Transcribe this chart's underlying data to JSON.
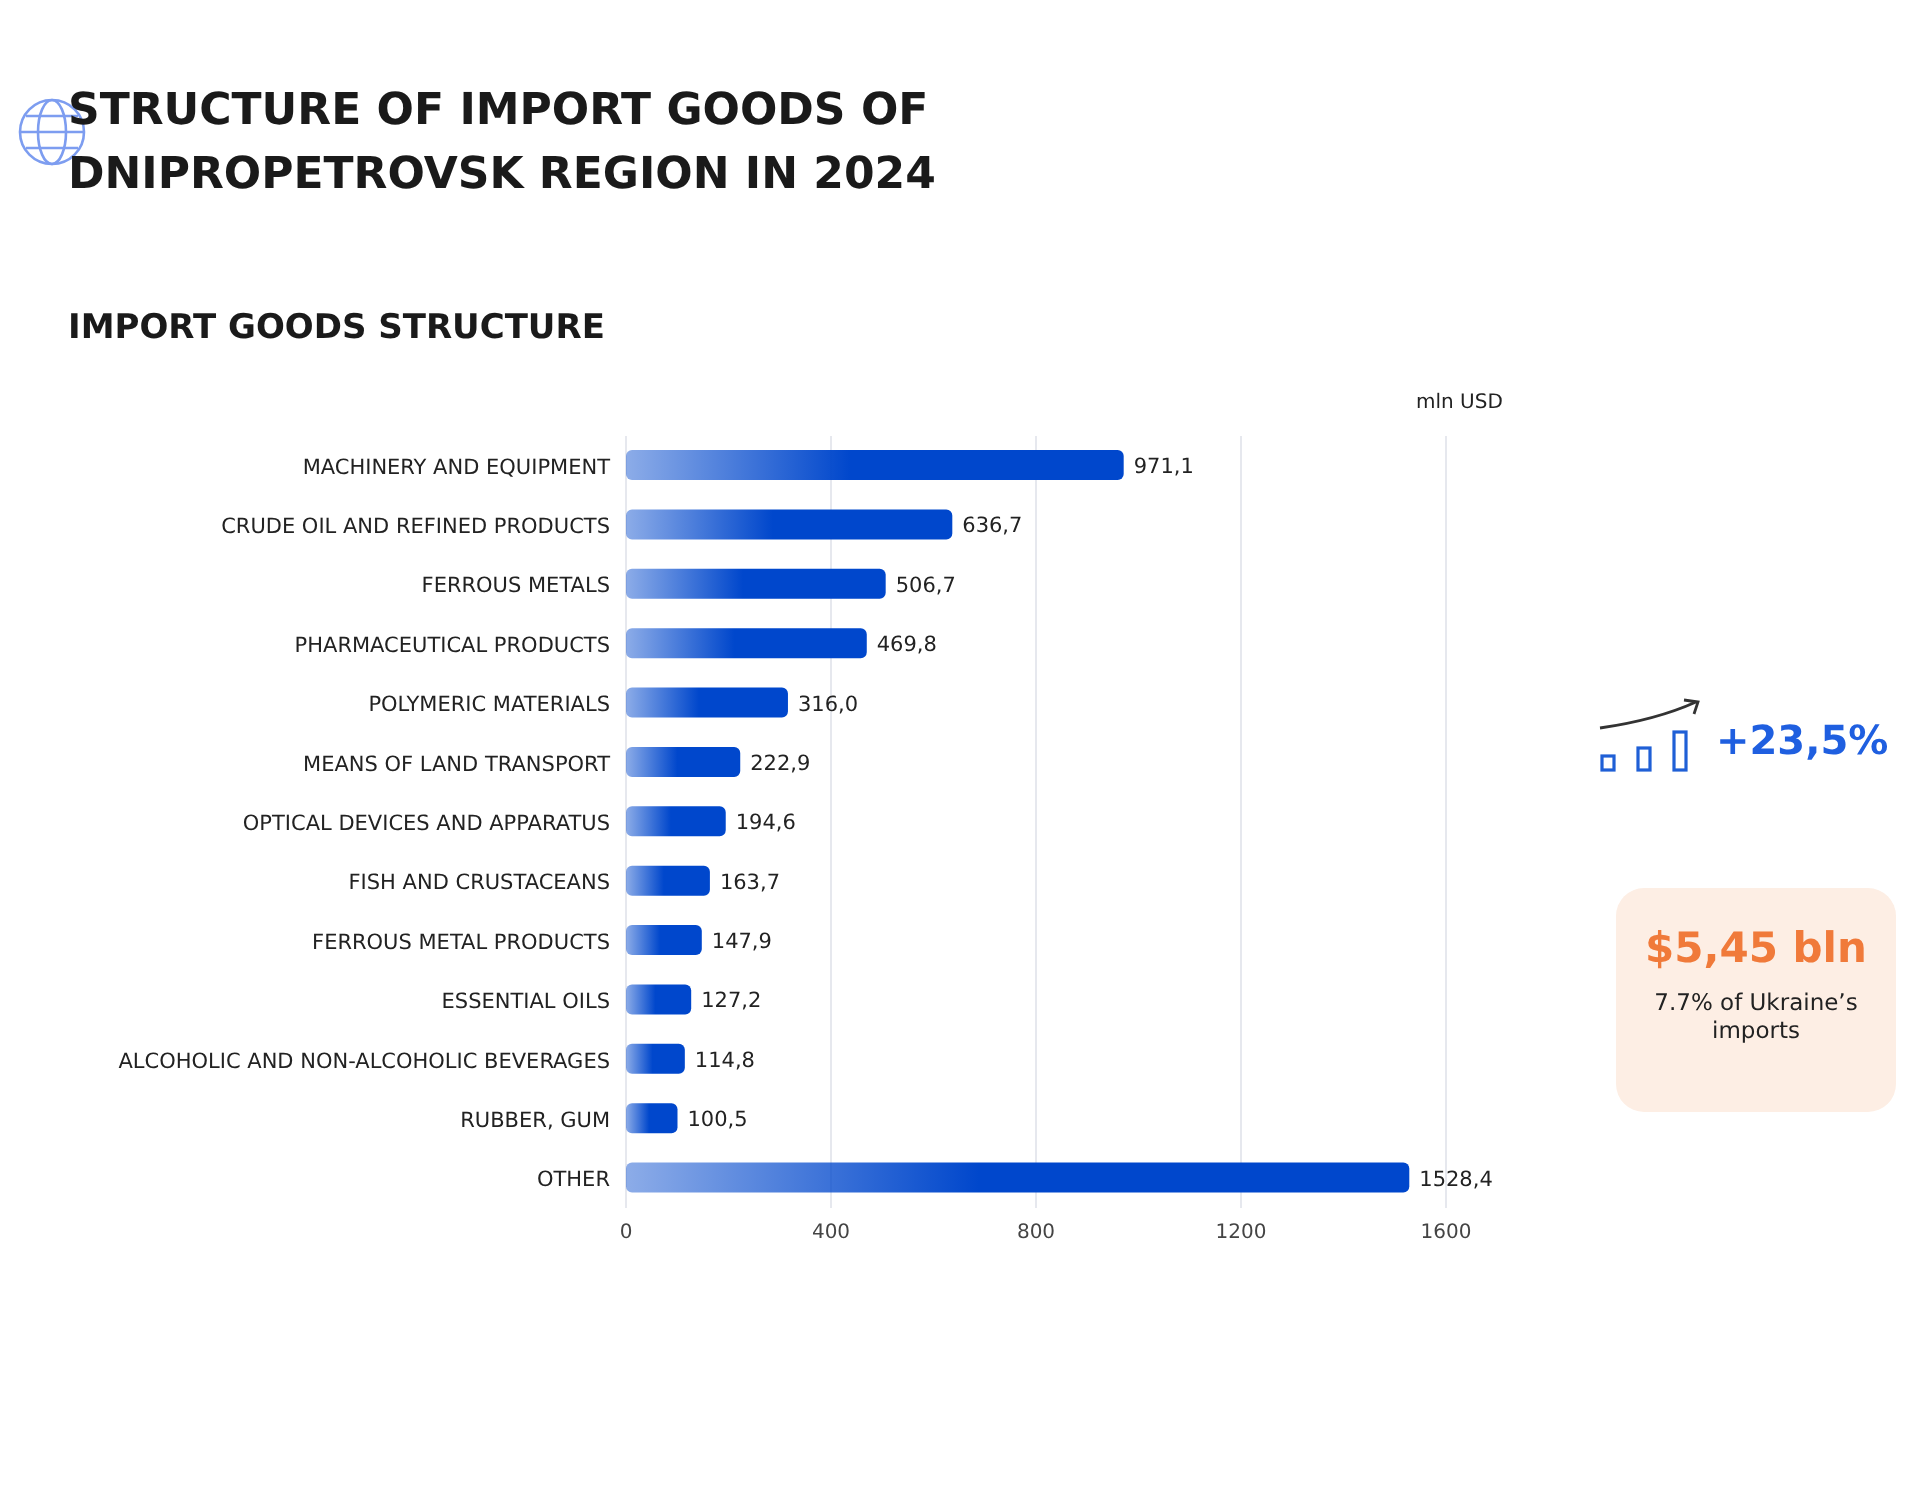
{
  "chart_data": {
    "type": "bar",
    "orientation": "horizontal",
    "title": "STRUCTURE OF IMPORT GOODS OF DNIPROPETROVSK REGION IN 2024",
    "subtitle": "IMPORT GOODS STRUCTURE",
    "xlabel": "mln USD",
    "categories": [
      "MACHINERY AND EQUIPMENT",
      "CRUDE OIL AND REFINED PRODUCTS",
      "FERROUS METALS",
      "PHARMACEUTICAL PRODUCTS",
      "POLYMERIC MATERIALS",
      "MEANS OF LAND TRANSPORT",
      "OPTICAL DEVICES AND APPARATUS",
      "FISH AND CRUSTACEANS",
      "FERROUS METAL PRODUCTS",
      "ESSENTIAL OILS",
      "ALCOHOLIC AND NON-ALCOHOLIC BEVERAGES",
      "RUBBER, GUM",
      "OTHER"
    ],
    "values": [
      971.1,
      636.7,
      506.7,
      469.8,
      316.0,
      222.9,
      194.6,
      163.7,
      147.9,
      127.2,
      114.8,
      100.5,
      1528.4
    ],
    "value_labels": [
      "971,1",
      "636,7",
      "506,7",
      "469,8",
      "316,0",
      "222,9",
      "194,6",
      "163,7",
      "147,9",
      "127,2",
      "114,8",
      "100,5",
      "1528,4"
    ],
    "color": "#0047cc",
    "xlim": [
      0,
      1600
    ],
    "xticks": [
      0,
      400,
      800,
      1200,
      1600
    ],
    "grid": "x",
    "annotations": [
      "+23,5%",
      "$5,45 bln",
      "7.7% of Ukraine’s imports"
    ]
  }
}
